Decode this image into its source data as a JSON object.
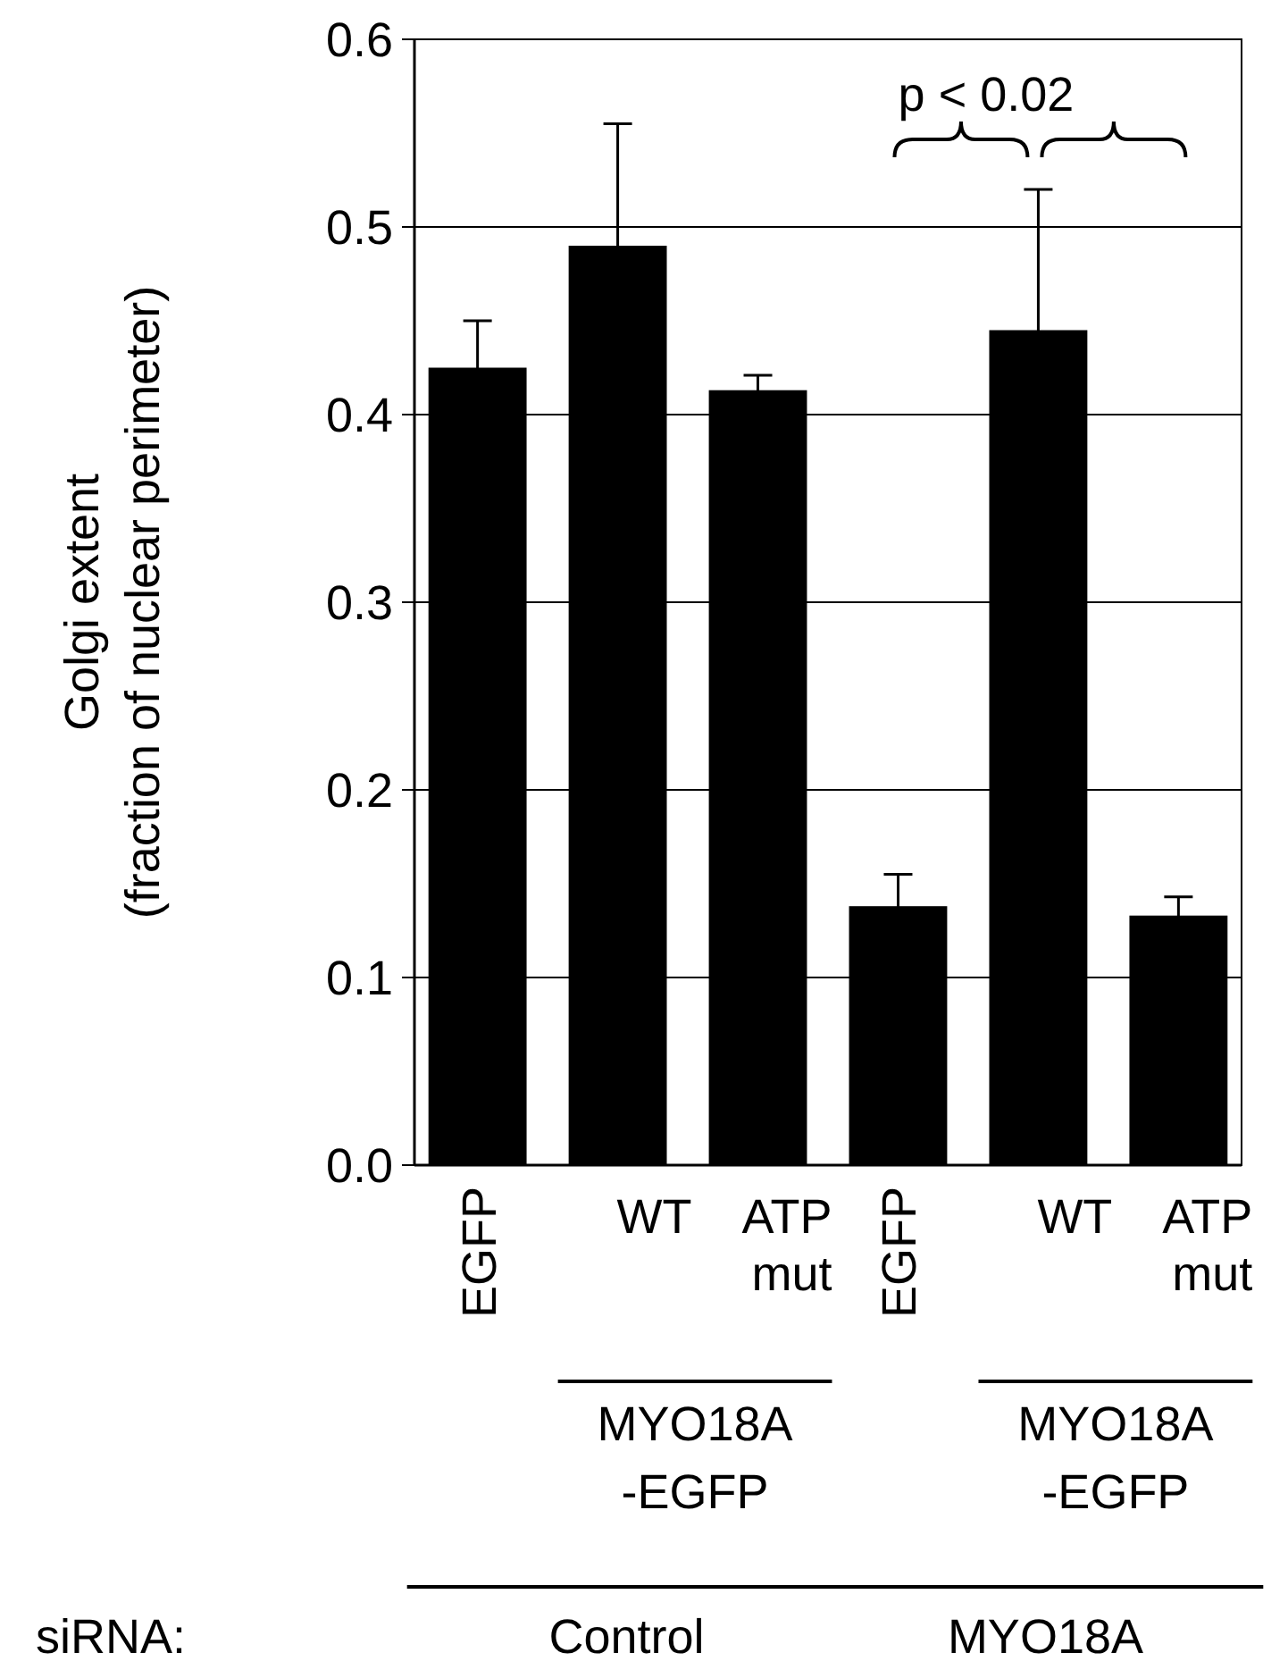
{
  "chart_data": {
    "type": "bar",
    "ylabel": "Golgi extent (fraction of nuclear perimeter)",
    "categories": [
      "EGFP",
      "WT",
      "ATP mut",
      "EGFP",
      "WT",
      "ATP mut"
    ],
    "values": [
      0.425,
      0.49,
      0.413,
      0.138,
      0.445,
      0.133
    ],
    "errors": [
      0.025,
      0.065,
      0.008,
      0.017,
      0.075,
      0.01
    ],
    "color": "#000000",
    "ylim": [
      0,
      0.6
    ],
    "yticks": [
      {
        "value": 0,
        "label": "0.0"
      },
      0.1,
      0.2,
      0.3,
      0.4,
      0.5,
      0.6
    ],
    "grid": "y",
    "annotations": [
      "p < 0.02",
      "MYO18A -EGFP",
      "MYO18A -EGFP",
      "siRNA:",
      "Control",
      "MYO18A"
    ]
  }
}
